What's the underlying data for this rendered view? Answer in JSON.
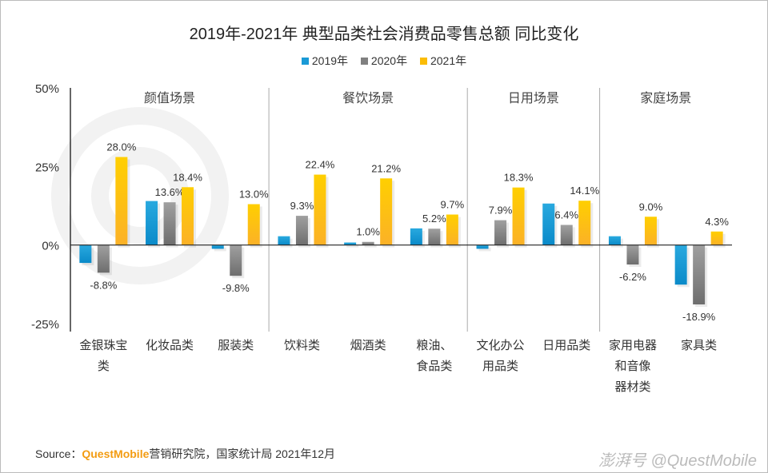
{
  "chart_data": {
    "type": "bar",
    "title": "2019年-2021年 典型品类社会消费品零售总额 同比变化",
    "categories": [
      "金银珠宝类",
      "化妆品类",
      "服装类",
      "饮料类",
      "烟酒类",
      "粮油、食品类",
      "文化办公用品类",
      "日用品类",
      "家用电器和音像器材类",
      "家具类"
    ],
    "category_lines": [
      [
        "金银珠宝",
        "类"
      ],
      [
        "化妆品类"
      ],
      [
        "服装类"
      ],
      [
        "饮料类"
      ],
      [
        "烟酒类"
      ],
      [
        "粮油、",
        "食品类"
      ],
      [
        "文化办公",
        "用品类"
      ],
      [
        "日用品类"
      ],
      [
        "家用电器",
        "和音像",
        "器材类"
      ],
      [
        "家具类"
      ]
    ],
    "groups": [
      {
        "label": "颜值场景",
        "from": 0,
        "to": 2
      },
      {
        "label": "餐饮场景",
        "from": 3,
        "to": 5
      },
      {
        "label": "日用场景",
        "from": 6,
        "to": 7
      },
      {
        "label": "家庭场景",
        "from": 8,
        "to": 9
      }
    ],
    "series": [
      {
        "name": "2019年",
        "color": "#1a9ad6",
        "values": [
          -5.7,
          14.0,
          -1.2,
          2.8,
          0.8,
          5.3,
          -1.2,
          13.2,
          2.8,
          -12.6
        ],
        "labels": [
          null,
          null,
          null,
          null,
          null,
          null,
          null,
          null,
          null,
          null
        ]
      },
      {
        "name": "2020年",
        "color": "#808080",
        "values": [
          -8.8,
          13.6,
          -9.8,
          9.3,
          1.0,
          5.2,
          7.9,
          6.4,
          -6.2,
          -18.9
        ],
        "labels": [
          "-8.8%",
          "13.6%",
          "-9.8%",
          "9.3%",
          "1.0%",
          "5.2%",
          "7.9%",
          "6.4%",
          "-6.2%",
          "-18.9%"
        ]
      },
      {
        "name": "2021年",
        "color": "#fbbc05",
        "values": [
          28.0,
          18.4,
          13.0,
          22.4,
          21.2,
          9.7,
          18.3,
          14.1,
          9.0,
          4.3
        ],
        "labels": [
          "28.0%",
          "18.4%",
          "13.0%",
          "22.4%",
          "21.2%",
          "9.7%",
          "18.3%",
          "14.1%",
          "9.0%",
          "4.3%"
        ]
      }
    ],
    "ylim": [
      -25,
      50
    ],
    "yticks": [
      50,
      25,
      0,
      -25
    ],
    "ytick_labels": [
      "50%",
      "25%",
      "0%",
      "-25%"
    ],
    "legend_position": "top",
    "grid": false
  },
  "footer": {
    "source_prefix": "Source：",
    "source_brand": "QuestMobile",
    "source_rest": "营销研究院，国家统计局 2021年12月",
    "watermark": "澎湃号 @QuestMobile"
  }
}
